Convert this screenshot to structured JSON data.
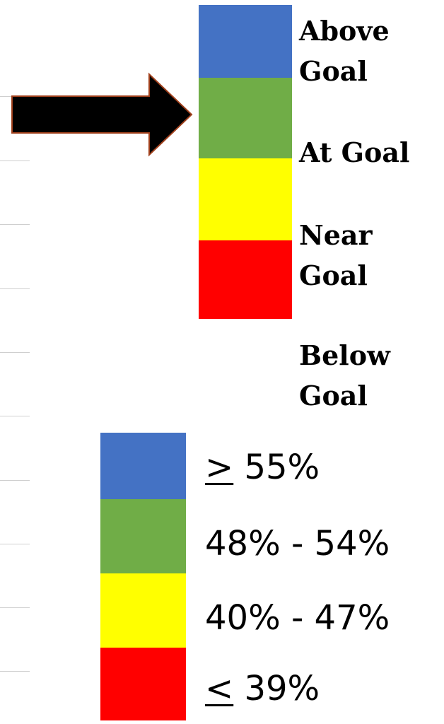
{
  "colors": {
    "blue": "#4472c4",
    "green": "#70ad47",
    "yellow": "#ffff00",
    "red": "#ff0000",
    "arrow_fill": "#000000",
    "arrow_outline": "#a0401c"
  },
  "goal_scale": {
    "bands": [
      "blue",
      "green",
      "yellow",
      "red"
    ],
    "labels": {
      "above": "Above\nGoal",
      "at": "At Goal",
      "near": "Near\nGoal",
      "below": "Below\nGoal"
    },
    "pointer": {
      "icon": "right-arrow-icon",
      "points_to": "At Goal"
    }
  },
  "percent_scale": {
    "bands": [
      "blue",
      "green",
      "yellow",
      "red"
    ],
    "rows": [
      {
        "symbol": ">",
        "text": " 55%"
      },
      {
        "symbol": "",
        "text": "48% - 54%"
      },
      {
        "symbol": "",
        "text": "40% - 47%"
      },
      {
        "symbol": "<",
        "text": " 39%"
      }
    ]
  }
}
